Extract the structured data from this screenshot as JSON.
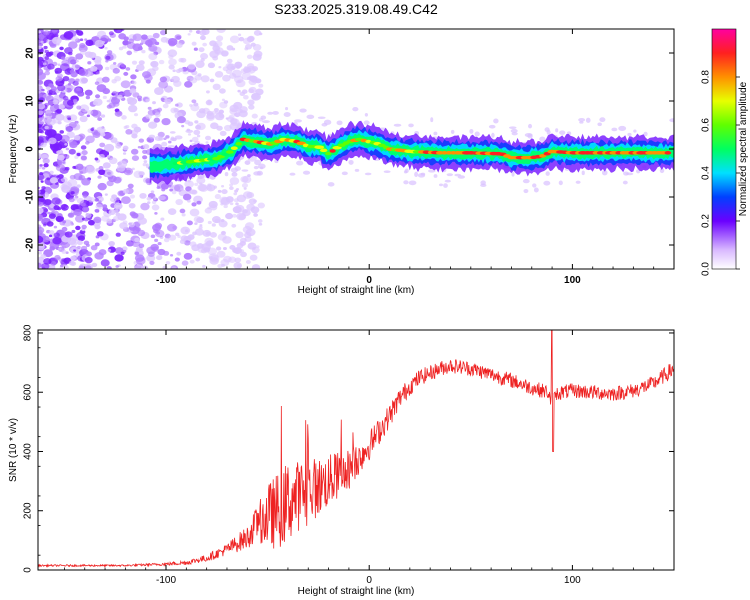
{
  "chart_data": [
    {
      "type": "heatmap",
      "title": "S233.2025.319.08.49.C42",
      "xlabel": "Height of straight line (km)",
      "ylabel": "Frequency (Hz)",
      "xlim": [
        -163,
        150
      ],
      "ylim": [
        -25,
        25
      ],
      "xticks": [
        -100,
        0,
        100
      ],
      "yticks": [
        -20,
        -10,
        0,
        10,
        20
      ],
      "colorbar": {
        "label": "Normalized spectral amplitude",
        "range": [
          0,
          1
        ],
        "ticks": [
          "0.0",
          "0.2",
          "0.4",
          "0.6",
          "0.8"
        ]
      },
      "ridge": {
        "x": [
          -105,
          -95,
          -85,
          -75,
          -68,
          -62,
          -55,
          -48,
          -42,
          -35,
          -30,
          -25,
          -20,
          -15,
          -10,
          -5,
          0,
          5,
          10,
          20,
          35,
          50,
          65,
          70,
          80,
          85,
          90,
          100,
          110,
          120,
          130,
          140,
          150
        ],
        "y": [
          -3.5,
          -3,
          -2.5,
          -2,
          -0.5,
          2,
          1.5,
          1,
          2,
          1.5,
          0.5,
          0.5,
          -1,
          0.5,
          1.5,
          2,
          1.5,
          1,
          0,
          -0.5,
          -0.8,
          -0.8,
          -1,
          -1.8,
          -1.8,
          -1.5,
          -0.5,
          -0.8,
          -0.8,
          -0.8,
          -0.8,
          -0.8,
          -0.8
        ]
      }
    },
    {
      "type": "line",
      "xlabel": "Height of straight line (km)",
      "ylabel": "SNR (10 * v/v)",
      "xlim": [
        -163,
        150
      ],
      "ylim": [
        0,
        810
      ],
      "xticks": [
        -100,
        0,
        100
      ],
      "yticks": [
        0,
        200,
        400,
        600,
        800
      ],
      "series": [
        {
          "name": "SNR",
          "color": "#ee2222",
          "x": [
            -163,
            -140,
            -120,
            -100,
            -90,
            -80,
            -70,
            -60,
            -55,
            -50,
            -45,
            -40,
            -35,
            -30,
            -25,
            -20,
            -15,
            -10,
            -5,
            0,
            5,
            10,
            15,
            20,
            25,
            30,
            35,
            40,
            50,
            60,
            70,
            80,
            88,
            90,
            92,
            95,
            100,
            110,
            120,
            130,
            140,
            150
          ],
          "y": [
            15,
            15,
            15,
            20,
            25,
            40,
            70,
            110,
            160,
            180,
            200,
            230,
            250,
            270,
            280,
            300,
            320,
            340,
            380,
            420,
            470,
            520,
            580,
            620,
            650,
            665,
            680,
            690,
            680,
            660,
            640,
            615,
            600,
            560,
            595,
            600,
            605,
            600,
            595,
            605,
            630,
            680
          ],
          "noise": [
            3,
            3,
            3,
            5,
            8,
            12,
            20,
            40,
            60,
            110,
            130,
            140,
            120,
            110,
            100,
            90,
            80,
            70,
            60,
            50,
            45,
            40,
            35,
            30,
            28,
            26,
            26,
            25,
            25,
            25,
            25,
            25,
            25,
            25,
            25,
            25,
            25,
            25,
            25,
            25,
            25,
            28
          ]
        }
      ]
    }
  ]
}
